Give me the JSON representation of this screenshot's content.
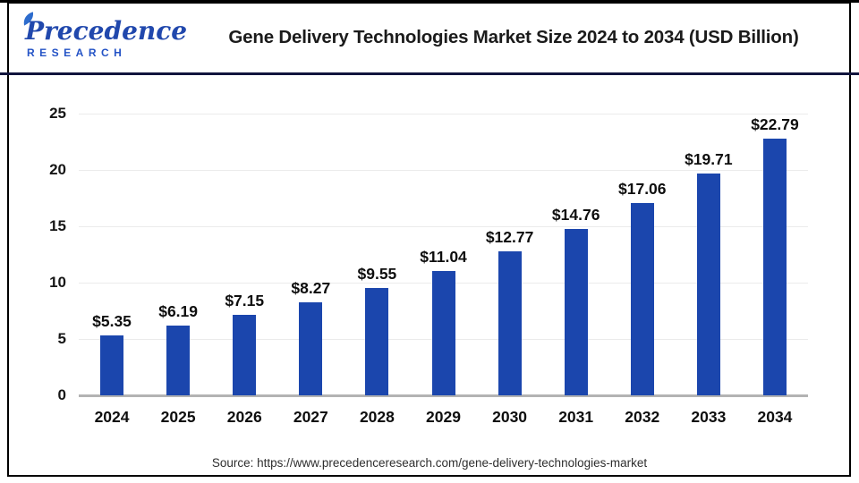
{
  "header": {
    "logo": {
      "brand": "Precedence",
      "sub": "RESEARCH",
      "brand_color": "#2148ad"
    },
    "title": "Gene Delivery Technologies Market Size 2024 to 2034 (USD Billion)"
  },
  "chart_data": {
    "type": "bar",
    "title": "Gene Delivery Technologies Market Size 2024 to 2034 (USD Billion)",
    "categories": [
      "2024",
      "2025",
      "2026",
      "2027",
      "2028",
      "2029",
      "2030",
      "2031",
      "2032",
      "2033",
      "2034"
    ],
    "values": [
      5.35,
      6.19,
      7.15,
      8.27,
      9.55,
      11.04,
      12.77,
      14.76,
      17.06,
      19.71,
      22.79
    ],
    "data_labels": [
      "$5.35",
      "$6.19",
      "$7.15",
      "$8.27",
      "$9.55",
      "$11.04",
      "$12.77",
      "$14.76",
      "$17.06",
      "$19.71",
      "$22.79"
    ],
    "xlabel": "",
    "ylabel": "",
    "ylim": [
      0,
      25
    ],
    "yticks": [
      0,
      5,
      10,
      15,
      20,
      25
    ],
    "grid": true,
    "legend": false,
    "bar_color": "#1b46ad",
    "axis_color": "#b3b3b3",
    "grid_color": "#ebebeb"
  },
  "footer": {
    "source": "Source: https://www.precedenceresearch.com/gene-delivery-technologies-market"
  }
}
